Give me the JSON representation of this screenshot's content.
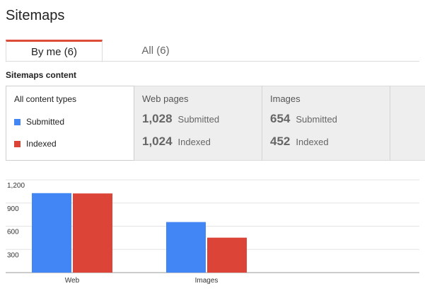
{
  "page": {
    "title": "Sitemaps"
  },
  "tabs": [
    {
      "label": "By me (6)",
      "active": true
    },
    {
      "label": "All (6)",
      "active": false
    }
  ],
  "section": {
    "title": "Sitemaps content"
  },
  "filters": {
    "all": {
      "heading": "All content types",
      "legend": [
        {
          "label": "Submitted",
          "color": "#4285f4"
        },
        {
          "label": "Indexed",
          "color": "#db4437"
        }
      ]
    },
    "web": {
      "heading": "Web pages",
      "submitted_value": "1,028",
      "submitted_label": "Submitted",
      "indexed_value": "1,024",
      "indexed_label": "Indexed"
    },
    "images": {
      "heading": "Images",
      "submitted_value": "654",
      "submitted_label": "Submitted",
      "indexed_value": "452",
      "indexed_label": "Indexed"
    }
  },
  "chart_data": {
    "type": "bar",
    "categories": [
      "Web",
      "Images"
    ],
    "series": [
      {
        "name": "Submitted",
        "color": "#4285f4",
        "values": [
          1028,
          654
        ]
      },
      {
        "name": "Indexed",
        "color": "#db4437",
        "values": [
          1024,
          452
        ]
      }
    ],
    "yticks": [
      300,
      600,
      900,
      1200
    ],
    "ytick_labels": [
      "300",
      "600",
      "900",
      "1,200"
    ],
    "ylim": [
      0,
      1200
    ],
    "grid": true
  }
}
